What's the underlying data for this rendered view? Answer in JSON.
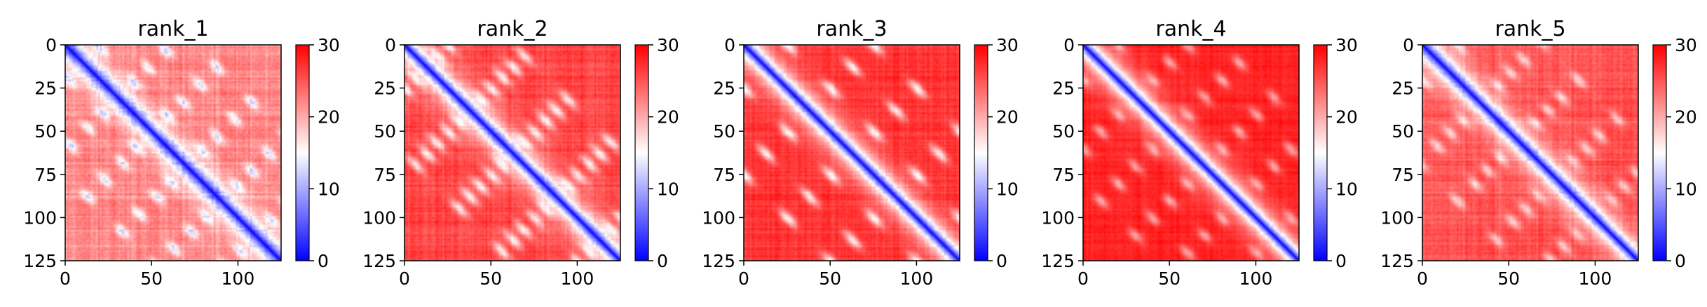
{
  "chart_data": [
    {
      "type": "heatmap",
      "title": "rank_1",
      "xlabel": "",
      "ylabel": "",
      "xlim": [
        0,
        125
      ],
      "ylim": [
        125,
        0
      ],
      "x_ticks": [
        0,
        50,
        100
      ],
      "y_ticks": [
        0,
        25,
        50,
        75,
        100,
        125
      ],
      "matrix_size": 125,
      "colorbar": {
        "cmap": "bwr",
        "vmin": 0,
        "vmax": 30,
        "ticks": [
          0,
          10,
          20,
          30
        ]
      },
      "diagonal_value": 0,
      "far_value": 22,
      "texture": 0.45,
      "blob_offsets": [
        18,
        35,
        55,
        75
      ],
      "blob_spacing": 20,
      "blob_value": 10,
      "blob_strength": 0.75,
      "band_half_width": 2.5
    },
    {
      "type": "heatmap",
      "title": "rank_2",
      "xlabel": "",
      "ylabel": "",
      "xlim": [
        0,
        125
      ],
      "ylim": [
        125,
        0
      ],
      "x_ticks": [
        0,
        50,
        100
      ],
      "y_ticks": [
        0,
        25,
        50,
        75,
        100,
        125
      ],
      "matrix_size": 125,
      "colorbar": {
        "cmap": "bwr",
        "vmin": 0,
        "vmax": 30,
        "ticks": [
          0,
          10,
          20,
          30
        ]
      },
      "diagonal_value": 0,
      "far_value": 26,
      "texture": 0.35,
      "blob_offsets": [
        13,
        25,
        38,
        50,
        63
      ],
      "blob_spacing": 25,
      "blob_value": 11,
      "blob_strength": 0.65,
      "band_half_width": 3
    },
    {
      "type": "heatmap",
      "title": "rank_3",
      "xlabel": "",
      "ylabel": "",
      "xlim": [
        0,
        125
      ],
      "ylim": [
        125,
        0
      ],
      "x_ticks": [
        0,
        50,
        100
      ],
      "y_ticks": [
        0,
        25,
        50,
        75,
        100,
        125
      ],
      "matrix_size": 125,
      "colorbar": {
        "cmap": "bwr",
        "vmin": 0,
        "vmax": 30,
        "ticks": [
          0,
          10,
          20,
          30
        ]
      },
      "diagonal_value": 0,
      "far_value": 27,
      "texture": 0.3,
      "blob_offsets": [
        25,
        50,
        75
      ],
      "blob_spacing": 25,
      "blob_value": 11,
      "blob_strength": 0.7,
      "band_half_width": 2.5
    },
    {
      "type": "heatmap",
      "title": "rank_4",
      "xlabel": "",
      "ylabel": "",
      "xlim": [
        0,
        125
      ],
      "ylim": [
        125,
        0
      ],
      "x_ticks": [
        0,
        50,
        100
      ],
      "y_ticks": [
        0,
        25,
        50,
        75,
        100,
        125
      ],
      "matrix_size": 125,
      "colorbar": {
        "cmap": "bwr",
        "vmin": 0,
        "vmax": 30,
        "ticks": [
          0,
          10,
          20,
          30
        ]
      },
      "diagonal_value": 0,
      "far_value": 28,
      "texture": 0.25,
      "blob_offsets": [
        20,
        40,
        60,
        80
      ],
      "blob_spacing": 20,
      "blob_value": 15,
      "blob_strength": 0.6,
      "band_half_width": 3.5
    },
    {
      "type": "heatmap",
      "title": "rank_5",
      "xlabel": "",
      "ylabel": "",
      "xlim": [
        0,
        125
      ],
      "ylim": [
        125,
        0
      ],
      "x_ticks": [
        0,
        50,
        100
      ],
      "y_ticks": [
        0,
        25,
        50,
        75,
        100,
        125
      ],
      "matrix_size": 125,
      "colorbar": {
        "cmap": "bwr",
        "vmin": 0,
        "vmax": 30,
        "ticks": [
          0,
          10,
          20,
          30
        ]
      },
      "diagonal_value": 0,
      "far_value": 25,
      "texture": 0.35,
      "blob_offsets": [
        20,
        35,
        50,
        70
      ],
      "blob_spacing": 22,
      "blob_value": 13,
      "blob_strength": 0.6,
      "band_half_width": 2.5
    }
  ]
}
